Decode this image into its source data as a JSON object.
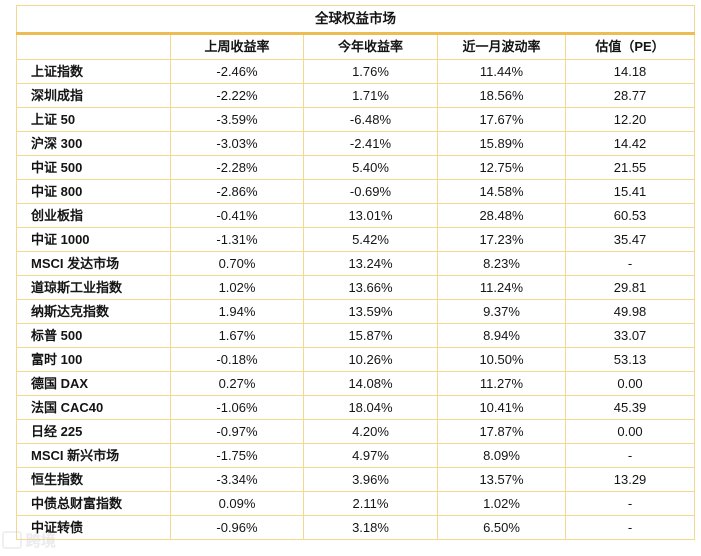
{
  "chart_data": {
    "type": "table",
    "title": "全球权益市场",
    "columns": [
      "上周收益率",
      "今年收益率",
      "近一月波动率",
      "估值（PE）"
    ],
    "rows": [
      [
        "上证指数",
        "-2.46%",
        "1.76%",
        "11.44%",
        "14.18"
      ],
      [
        "深圳成指",
        "-2.22%",
        "1.71%",
        "18.56%",
        "28.77"
      ],
      [
        "上证 50",
        "-3.59%",
        "-6.48%",
        "17.67%",
        "12.20"
      ],
      [
        "沪深 300",
        "-3.03%",
        "-2.41%",
        "15.89%",
        "14.42"
      ],
      [
        "中证 500",
        "-2.28%",
        "5.40%",
        "12.75%",
        "21.55"
      ],
      [
        "中证 800",
        "-2.86%",
        "-0.69%",
        "14.58%",
        "15.41"
      ],
      [
        "创业板指",
        "-0.41%",
        "13.01%",
        "28.48%",
        "60.53"
      ],
      [
        "中证 1000",
        "-1.31%",
        "5.42%",
        "17.23%",
        "35.47"
      ],
      [
        "MSCI 发达市场",
        "0.70%",
        "13.24%",
        "8.23%",
        "-"
      ],
      [
        "道琼斯工业指数",
        "1.02%",
        "13.66%",
        "11.24%",
        "29.81"
      ],
      [
        "纳斯达克指数",
        "1.94%",
        "13.59%",
        "9.37%",
        "49.98"
      ],
      [
        "标普 500",
        "1.67%",
        "15.87%",
        "8.94%",
        "33.07"
      ],
      [
        "富时 100",
        "-0.18%",
        "10.26%",
        "10.50%",
        "53.13"
      ],
      [
        "德国 DAX",
        "0.27%",
        "14.08%",
        "11.27%",
        "0.00"
      ],
      [
        "法国 CAC40",
        "-1.06%",
        "18.04%",
        "10.41%",
        "45.39"
      ],
      [
        "日经 225",
        "-0.97%",
        "4.20%",
        "17.87%",
        "0.00"
      ],
      [
        "MSCI 新兴市场",
        "-1.75%",
        "4.97%",
        "8.09%",
        "-"
      ],
      [
        "恒生指数",
        "-3.34%",
        "3.96%",
        "13.57%",
        "13.29"
      ],
      [
        "中债总财富指数",
        "0.09%",
        "2.11%",
        "1.02%",
        "-"
      ],
      [
        "中证转债",
        "-0.96%",
        "3.18%",
        "6.50%",
        "-"
      ]
    ],
    "layout": {
      "grid": true,
      "border_color": "#F5D88F",
      "accent_bar_color": "#EDBD54",
      "text_color": "#141414"
    }
  },
  "watermark": {
    "text": "跨境"
  }
}
